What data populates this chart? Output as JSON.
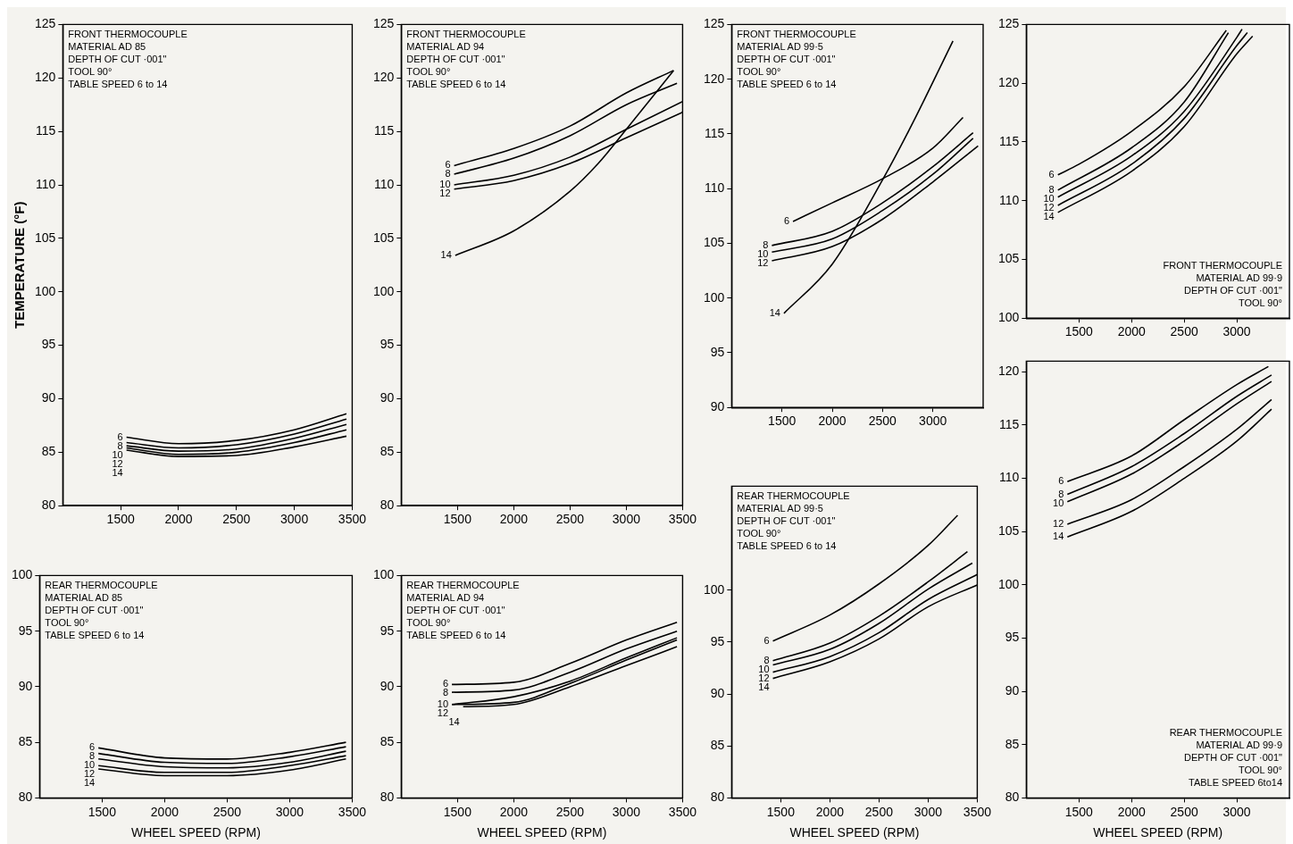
{
  "chart_data": [
    {
      "type": "line",
      "ylabel": "TEMPERATURE (°F)",
      "annotations": [
        "FRONT THERMOCOUPLE",
        "MATERIAL AD 85",
        "DEPTH OF CUT ·001\"",
        "TOOL 90°",
        "TABLE SPEED 6 to 14"
      ],
      "xlim": [
        1000,
        3500
      ],
      "xticks": [
        1500,
        2000,
        2500,
        3000,
        3500
      ],
      "ylim": [
        80,
        125
      ],
      "yticks": [
        80,
        85,
        90,
        95,
        100,
        105,
        110,
        115,
        120,
        125
      ],
      "marker": "none",
      "line_style": "solid",
      "series": [
        {
          "name": "6",
          "color": "#000000",
          "x": [
            1550,
            2000,
            2500,
            3000,
            3450
          ],
          "values": [
            86.4,
            85.8,
            86.1,
            87.1,
            88.6
          ]
        },
        {
          "name": "8",
          "color": "#000000",
          "x": [
            1550,
            2000,
            2500,
            3000,
            3450
          ],
          "values": [
            85.9,
            85.4,
            85.7,
            86.7,
            88.1
          ]
        },
        {
          "name": "10",
          "color": "#000000",
          "x": [
            1550,
            2000,
            2500,
            3000,
            3450
          ],
          "values": [
            85.6,
            85.1,
            85.3,
            86.3,
            87.6
          ]
        },
        {
          "name": "12",
          "color": "#000000",
          "x": [
            1550,
            2000,
            2500,
            3000,
            3450
          ],
          "values": [
            85.4,
            84.8,
            85.0,
            85.9,
            87.1
          ]
        },
        {
          "name": "14",
          "color": "#000000",
          "x": [
            1550,
            2000,
            2500,
            3000,
            3450
          ],
          "values": [
            85.2,
            84.6,
            84.7,
            85.5,
            86.5
          ]
        }
      ]
    },
    {
      "type": "line",
      "annotations": [
        "FRONT THERMOCOUPLE",
        "MATERIAL AD 94",
        "DEPTH OF CUT ·001\"",
        "TOOL 90°",
        "TABLE SPEED 6 to 14"
      ],
      "xlim": [
        1000,
        3500
      ],
      "xticks": [
        1500,
        2000,
        2500,
        3000,
        3500
      ],
      "ylim": [
        80,
        125
      ],
      "yticks": [
        80,
        85,
        90,
        95,
        100,
        105,
        110,
        115,
        120,
        125
      ],
      "marker": "none",
      "line_style": "solid",
      "series": [
        {
          "name": "6",
          "color": "#000000",
          "x": [
            1470,
            2000,
            2500,
            3000,
            3420
          ],
          "values": [
            111.8,
            113.4,
            115.5,
            118.6,
            120.7
          ]
        },
        {
          "name": "8",
          "color": "#000000",
          "x": [
            1470,
            2000,
            2500,
            3000,
            3450
          ],
          "values": [
            111.0,
            112.5,
            114.6,
            117.5,
            119.5
          ]
        },
        {
          "name": "10",
          "color": "#000000",
          "x": [
            1470,
            2000,
            2500,
            3000,
            3500
          ],
          "values": [
            110.0,
            110.9,
            112.6,
            115.2,
            117.8
          ]
        },
        {
          "name": "12",
          "color": "#000000",
          "x": [
            1470,
            2000,
            2500,
            3000,
            3500
          ],
          "values": [
            109.6,
            110.4,
            112.0,
            114.4,
            116.8
          ]
        },
        {
          "name": "14",
          "color": "#000000",
          "x": [
            1480,
            2000,
            2500,
            2750,
            3000,
            3420
          ],
          "values": [
            103.4,
            105.7,
            109.4,
            112.0,
            115.2,
            120.7
          ]
        }
      ]
    },
    {
      "type": "line",
      "annotations": [
        "FRONT THERMOCOUPLE",
        "MATERIAL AD 99·5",
        "DEPTH OF CUT ·001\"",
        "TOOL 90°",
        "TABLE SPEED 6 to 14"
      ],
      "xlim": [
        1000,
        3500
      ],
      "xticks": [
        1500,
        2000,
        2500,
        3000
      ],
      "ylim": [
        90,
        125
      ],
      "yticks": [
        90,
        95,
        100,
        105,
        110,
        115,
        120,
        125
      ],
      "marker": "none",
      "line_style": "solid",
      "series": [
        {
          "name": "6",
          "color": "#000000",
          "x": [
            1610,
            2000,
            2500,
            3000,
            3300
          ],
          "values": [
            107.0,
            108.7,
            110.9,
            113.7,
            116.5
          ]
        },
        {
          "name": "8",
          "color": "#000000",
          "x": [
            1400,
            2000,
            2500,
            3000,
            3400
          ],
          "values": [
            104.8,
            106.1,
            108.7,
            112.0,
            115.1
          ]
        },
        {
          "name": "10",
          "color": "#000000",
          "x": [
            1400,
            2000,
            2500,
            3000,
            3400
          ],
          "values": [
            104.2,
            105.4,
            108.0,
            111.3,
            114.6
          ]
        },
        {
          "name": "12",
          "color": "#000000",
          "x": [
            1400,
            2000,
            2500,
            3000,
            3450
          ],
          "values": [
            103.4,
            104.7,
            107.2,
            110.6,
            113.9
          ]
        },
        {
          "name": "14",
          "color": "#000000",
          "x": [
            1520,
            2000,
            2500,
            2800,
            3200
          ],
          "values": [
            98.6,
            103.1,
            110.8,
            116.0,
            123.5
          ]
        }
      ]
    },
    {
      "type": "line",
      "annotations": [
        "FRONT THERMOCOUPLE",
        "MATERIAL AD 99·9",
        "DEPTH OF CUT ·001\"",
        "TOOL 90°"
      ],
      "xlim": [
        1000,
        3500
      ],
      "xticks": [
        1500,
        2000,
        2500,
        3000
      ],
      "ylim": [
        100,
        125
      ],
      "yticks": [
        100,
        105,
        110,
        115,
        120,
        125
      ],
      "marker": "none",
      "line_style": "solid",
      "series": [
        {
          "name": "6",
          "color": "#000000",
          "x": [
            1300,
            1500,
            2000,
            2500,
            2900
          ],
          "values": [
            112.2,
            113.1,
            115.9,
            119.7,
            124.5
          ]
        },
        {
          "name": "8",
          "color": "#000000",
          "x": [
            1300,
            2000,
            2500,
            2920
          ],
          "values": [
            110.9,
            114.5,
            118.4,
            124.3
          ]
        },
        {
          "name": "10",
          "color": "#000000",
          "x": [
            1300,
            2000,
            2500,
            3000,
            3050
          ],
          "values": [
            110.3,
            113.8,
            117.6,
            123.9,
            124.6
          ]
        },
        {
          "name": "12",
          "color": "#000000",
          "x": [
            1300,
            2000,
            2500,
            3000,
            3100
          ],
          "values": [
            109.6,
            113.1,
            117.0,
            123.2,
            124.3
          ]
        },
        {
          "name": "14",
          "color": "#000000",
          "x": [
            1300,
            2000,
            2500,
            3000,
            3150
          ],
          "values": [
            109.0,
            112.5,
            116.3,
            122.5,
            124.0
          ]
        }
      ]
    },
    {
      "type": "line",
      "xlabel": "WHEEL SPEED (RPM)",
      "annotations": [
        "REAR THERMOCOUPLE",
        "MATERIAL AD 85",
        "DEPTH OF CUT ·001\"",
        "TOOL 90°",
        "TABLE SPEED 6 to 14"
      ],
      "xlim": [
        1000,
        3500
      ],
      "xticks": [
        1500,
        2000,
        2500,
        3000,
        3500
      ],
      "ylim": [
        80,
        100
      ],
      "yticks": [
        80,
        85,
        90,
        95,
        100
      ],
      "marker": "none",
      "line_style": "solid",
      "series": [
        {
          "name": "6",
          "color": "#000000",
          "x": [
            1470,
            2000,
            2500,
            3000,
            3450
          ],
          "values": [
            84.5,
            83.6,
            83.5,
            84.1,
            85.0
          ]
        },
        {
          "name": "8",
          "color": "#000000",
          "x": [
            1470,
            2000,
            2500,
            3000,
            3450
          ],
          "values": [
            84.0,
            83.2,
            83.1,
            83.7,
            84.6
          ]
        },
        {
          "name": "10",
          "color": "#000000",
          "x": [
            1470,
            2000,
            2500,
            3000,
            3450
          ],
          "values": [
            83.5,
            82.8,
            82.7,
            83.2,
            84.2
          ]
        },
        {
          "name": "12",
          "color": "#000000",
          "x": [
            1470,
            2000,
            2500,
            3000,
            3450
          ],
          "values": [
            82.9,
            82.3,
            82.3,
            82.9,
            83.8
          ]
        },
        {
          "name": "14",
          "color": "#000000",
          "x": [
            1470,
            2000,
            2500,
            3000,
            3450
          ],
          "values": [
            82.6,
            82.0,
            82.0,
            82.5,
            83.5
          ]
        }
      ]
    },
    {
      "type": "line",
      "xlabel": "WHEEL SPEED (RPM)",
      "annotations": [
        "REAR THERMOCOUPLE",
        "MATERIAL AD 94",
        "DEPTH OF CUT ·001\"",
        "TOOL 90°",
        "TABLE SPEED 6 to 14"
      ],
      "xlim": [
        1000,
        3500
      ],
      "xticks": [
        1500,
        2000,
        2500,
        3000,
        3500
      ],
      "ylim": [
        80,
        100
      ],
      "yticks": [
        80,
        85,
        90,
        95,
        100
      ],
      "marker": "none",
      "line_style": "solid",
      "series": [
        {
          "name": "6",
          "color": "#000000",
          "x": [
            1450,
            2000,
            2500,
            3000,
            3450
          ],
          "values": [
            90.2,
            90.4,
            92.1,
            94.2,
            95.8
          ]
        },
        {
          "name": "8",
          "color": "#000000",
          "x": [
            1450,
            2000,
            2500,
            3000,
            3450
          ],
          "values": [
            89.5,
            89.7,
            91.3,
            93.4,
            95.0
          ]
        },
        {
          "name": "10",
          "color": "#000000",
          "x": [
            1450,
            2000,
            2500,
            3000,
            3450
          ],
          "values": [
            88.4,
            89.1,
            90.5,
            92.6,
            94.4
          ]
        },
        {
          "name": "12",
          "color": "#000000",
          "x": [
            1450,
            2000,
            2500,
            3000,
            3450
          ],
          "values": [
            88.4,
            88.6,
            90.3,
            92.4,
            94.2
          ]
        },
        {
          "name": "14",
          "color": "#000000",
          "x": [
            1550,
            2000,
            2500,
            3000,
            3450
          ],
          "values": [
            88.2,
            88.4,
            90.0,
            91.9,
            93.6
          ]
        }
      ]
    },
    {
      "type": "line",
      "xlabel": "WHEEL SPEED (RPM)",
      "annotations": [
        "REAR THERMOCOUPLE",
        "MATERIAL AD 99·5",
        "DEPTH OF CUT ·001\"",
        "TOOL 90°",
        "TABLE SPEED 6 to 14"
      ],
      "xlim": [
        1000,
        3500
      ],
      "xticks": [
        1500,
        2000,
        2500,
        3000,
        3500
      ],
      "ylim": [
        80,
        110
      ],
      "yticks": [
        80,
        85,
        90,
        95,
        100
      ],
      "marker": "none",
      "line_style": "solid",
      "series": [
        {
          "name": "6",
          "color": "#000000",
          "x": [
            1420,
            2000,
            2500,
            3000,
            3300
          ],
          "values": [
            95.1,
            97.6,
            100.6,
            104.3,
            107.2
          ]
        },
        {
          "name": "8",
          "color": "#000000",
          "x": [
            1420,
            2000,
            2500,
            3000,
            3400
          ],
          "values": [
            93.2,
            94.9,
            97.5,
            100.8,
            103.7
          ]
        },
        {
          "name": "10",
          "color": "#000000",
          "x": [
            1420,
            2000,
            2500,
            3000,
            3450
          ],
          "values": [
            92.8,
            94.3,
            96.8,
            100.1,
            102.6
          ]
        },
        {
          "name": "12",
          "color": "#000000",
          "x": [
            1420,
            2000,
            2500,
            3000,
            3500
          ],
          "values": [
            92.1,
            93.6,
            95.9,
            99.1,
            101.5
          ]
        },
        {
          "name": "14",
          "color": "#000000",
          "x": [
            1420,
            2000,
            2500,
            3000,
            3500
          ],
          "values": [
            91.5,
            93.1,
            95.3,
            98.4,
            100.5
          ]
        }
      ]
    },
    {
      "type": "line",
      "xlabel": "WHEEL SPEED (RPM)",
      "annotations": [
        "REAR THERMOCOUPLE",
        "MATERIAL AD 99·9",
        "DEPTH OF CUT ·001\"",
        "TOOL 90°",
        "TABLE SPEED 6to14"
      ],
      "xlim": [
        1000,
        3500
      ],
      "xticks": [
        1500,
        2000,
        2500,
        3000
      ],
      "ylim": [
        80,
        121
      ],
      "yticks": [
        80,
        85,
        90,
        95,
        100,
        105,
        110,
        115,
        120
      ],
      "marker": "none",
      "line_style": "solid",
      "series": [
        {
          "name": "6",
          "color": "#000000",
          "x": [
            1390,
            2000,
            2500,
            3000,
            3300
          ],
          "values": [
            109.7,
            112.1,
            115.5,
            118.8,
            120.5
          ]
        },
        {
          "name": "8",
          "color": "#000000",
          "x": [
            1390,
            2000,
            2500,
            3000,
            3330
          ],
          "values": [
            108.5,
            111.1,
            114.2,
            117.7,
            119.7
          ]
        },
        {
          "name": "10",
          "color": "#000000",
          "x": [
            1390,
            2000,
            2500,
            3000,
            3330
          ],
          "values": [
            107.8,
            110.4,
            113.5,
            117.0,
            119.1
          ]
        },
        {
          "name": "12",
          "color": "#000000",
          "x": [
            1390,
            2000,
            2500,
            3000,
            3330
          ],
          "values": [
            105.7,
            108.0,
            111.1,
            114.6,
            117.4
          ]
        },
        {
          "name": "14",
          "color": "#000000",
          "x": [
            1390,
            2000,
            2500,
            3000,
            3330
          ],
          "values": [
            104.5,
            106.9,
            110.0,
            113.5,
            116.5
          ]
        }
      ]
    }
  ]
}
